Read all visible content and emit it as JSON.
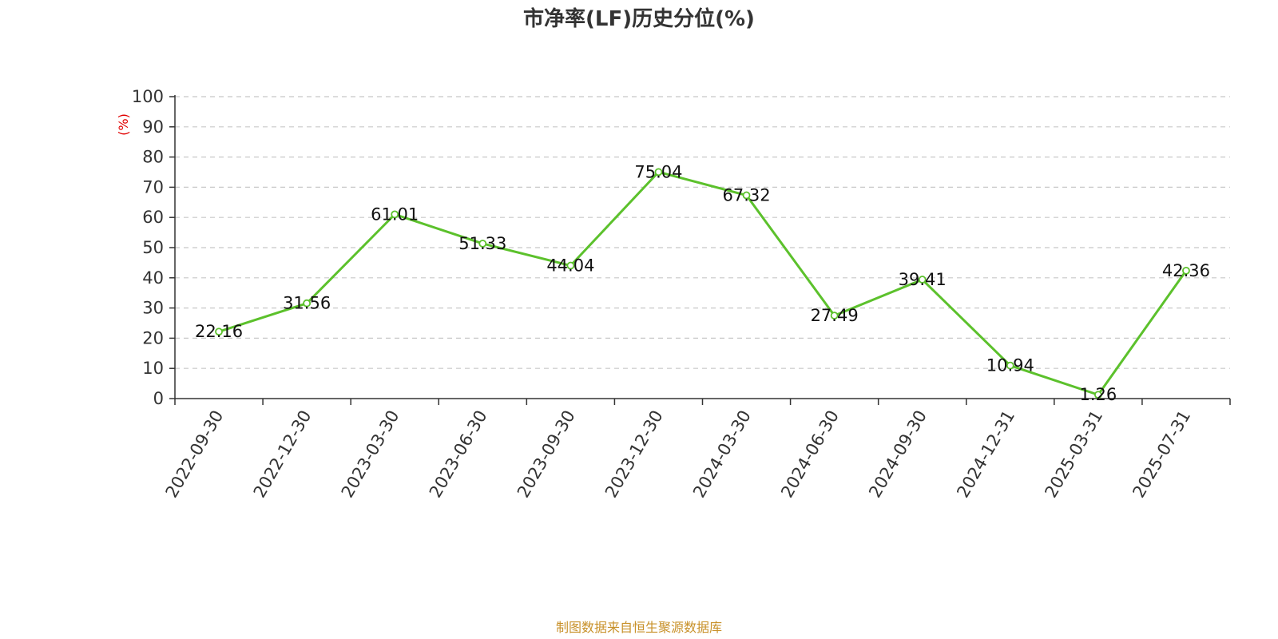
{
  "chart_data": {
    "type": "line",
    "title": "市净率(LF)历史分位(%)",
    "ylabel": "(%)",
    "xlabel": "",
    "ylim": [
      0,
      100
    ],
    "yticks": [
      0,
      10,
      20,
      30,
      40,
      50,
      60,
      70,
      80,
      90,
      100
    ],
    "grid": "horizontal-dashed",
    "categories": [
      "2022-09-30",
      "2022-12-30",
      "2023-03-30",
      "2023-06-30",
      "2023-09-30",
      "2023-12-30",
      "2024-03-30",
      "2024-06-30",
      "2024-09-30",
      "2024-12-31",
      "2025-03-31",
      "2025-07-31"
    ],
    "series": [
      {
        "values": [
          22.16,
          31.56,
          61.01,
          51.33,
          44.04,
          75.04,
          67.32,
          27.49,
          39.41,
          10.94,
          1.26,
          42.36
        ],
        "color": "#5cc12c"
      }
    ]
  },
  "footer": {
    "source": "制图数据来自恒生聚源数据库"
  },
  "colors": {
    "title": "#333333",
    "ylabel": "#e00000",
    "source": "#c8912a",
    "grid": "#c8c8c8",
    "axis": "#333333"
  }
}
